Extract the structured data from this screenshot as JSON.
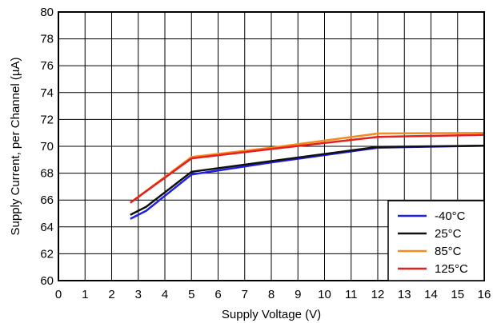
{
  "chart_data": {
    "type": "line",
    "title": "",
    "xlabel": "Supply Voltage (V)",
    "ylabel": "Supply Current, per Channel (µA)",
    "xlim": [
      0,
      16
    ],
    "ylim": [
      60,
      80
    ],
    "x_ticks": [
      "0",
      "1",
      "2",
      "3",
      "4",
      "5",
      "6",
      "7",
      "8",
      "9",
      "10",
      "11",
      "12",
      "13",
      "14",
      "15",
      "16"
    ],
    "y_ticks": [
      "60",
      "62",
      "64",
      "66",
      "68",
      "70",
      "72",
      "74",
      "76",
      "78",
      "80"
    ],
    "x_tick_values": [
      0,
      1,
      2,
      3,
      4,
      5,
      6,
      7,
      8,
      9,
      10,
      11,
      12,
      13,
      14,
      15,
      16
    ],
    "y_tick_values": [
      60,
      62,
      64,
      66,
      68,
      70,
      72,
      74,
      76,
      78,
      80
    ],
    "grid": true,
    "legend_position": "bottom-right",
    "series": [
      {
        "name": "-40°C",
        "color": "#1f1fe6",
        "points": [
          [
            2.7,
            64.6
          ],
          [
            3.3,
            65.2
          ],
          [
            5,
            67.9
          ],
          [
            8,
            68.8
          ],
          [
            12,
            69.9
          ],
          [
            16,
            70.05
          ]
        ]
      },
      {
        "name": "25°C",
        "color": "#111111",
        "points": [
          [
            2.7,
            64.9
          ],
          [
            3.3,
            65.5
          ],
          [
            5,
            68.1
          ],
          [
            8,
            68.9
          ],
          [
            12,
            69.95
          ],
          [
            16,
            70.05
          ]
        ]
      },
      {
        "name": "85°C",
        "color": "#f28a1c",
        "points": [
          [
            2.7,
            65.8
          ],
          [
            5,
            69.2
          ],
          [
            8,
            69.9
          ],
          [
            12,
            70.95
          ],
          [
            16,
            71.0
          ]
        ]
      },
      {
        "name": "125°C",
        "color": "#e61e1e",
        "points": [
          [
            2.7,
            65.8
          ],
          [
            5,
            69.1
          ],
          [
            8,
            69.8
          ],
          [
            12,
            70.7
          ],
          [
            16,
            70.85
          ]
        ]
      }
    ]
  }
}
